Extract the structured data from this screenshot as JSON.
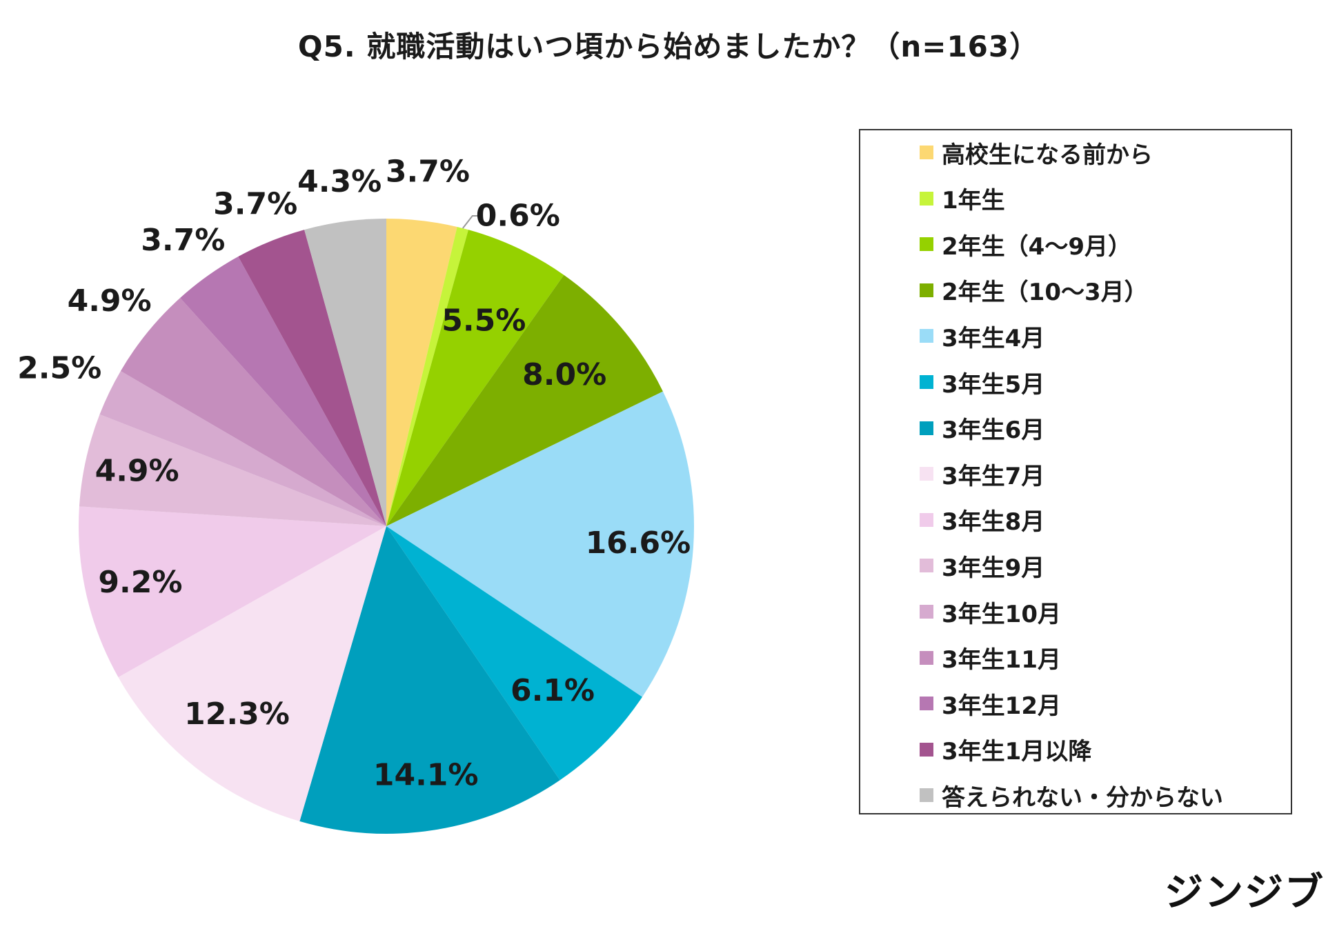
{
  "chart_data": {
    "type": "pie",
    "title": "Q5. 就職活動はいつ頃から始めましたか？（n=163）",
    "legend_position": "right",
    "slices": [
      {
        "label": "高校生になる前から",
        "value": 3.7,
        "display": "3.7%",
        "color": "#fcd872"
      },
      {
        "label": "1年生",
        "value": 0.6,
        "display": "0.6%",
        "color": "#c6f43a"
      },
      {
        "label": "2年生（4〜9月）",
        "value": 5.5,
        "display": "5.5%",
        "color": "#95d100"
      },
      {
        "label": "2年生（10〜3月）",
        "value": 8.0,
        "display": "8.0%",
        "color": "#7daf00"
      },
      {
        "label": "3年生4月",
        "value": 16.6,
        "display": "16.6%",
        "color": "#9adcf7"
      },
      {
        "label": "3年生5月",
        "value": 6.1,
        "display": "6.1%",
        "color": "#00b2d2"
      },
      {
        "label": "3年生6月",
        "value": 14.1,
        "display": "14.1%",
        "color": "#009fbd"
      },
      {
        "label": "3年生7月",
        "value": 12.3,
        "display": "12.3%",
        "color": "#f7e2f2"
      },
      {
        "label": "3年生8月",
        "value": 9.2,
        "display": "9.2%",
        "color": "#f0cbea"
      },
      {
        "label": "3年生9月",
        "value": 4.9,
        "display": "4.9%",
        "color": "#e2bcd9"
      },
      {
        "label": "3年生10月",
        "value": 2.5,
        "display": "2.5%",
        "color": "#d6aacf"
      },
      {
        "label": "3年生11月",
        "value": 4.9,
        "display": "4.9%",
        "color": "#c58ebd"
      },
      {
        "label": "3年生12月",
        "value": 3.7,
        "display": "3.7%",
        "color": "#b677b2"
      },
      {
        "label": "3年生1月以降",
        "value": 3.7,
        "display": "3.7%",
        "color": "#a3548f"
      },
      {
        "label": "答えられない・分からない",
        "value": 4.3,
        "display": "4.3%",
        "color": "#c1c1c1"
      }
    ]
  },
  "brand": {
    "logo_text": "ジンジブ"
  }
}
